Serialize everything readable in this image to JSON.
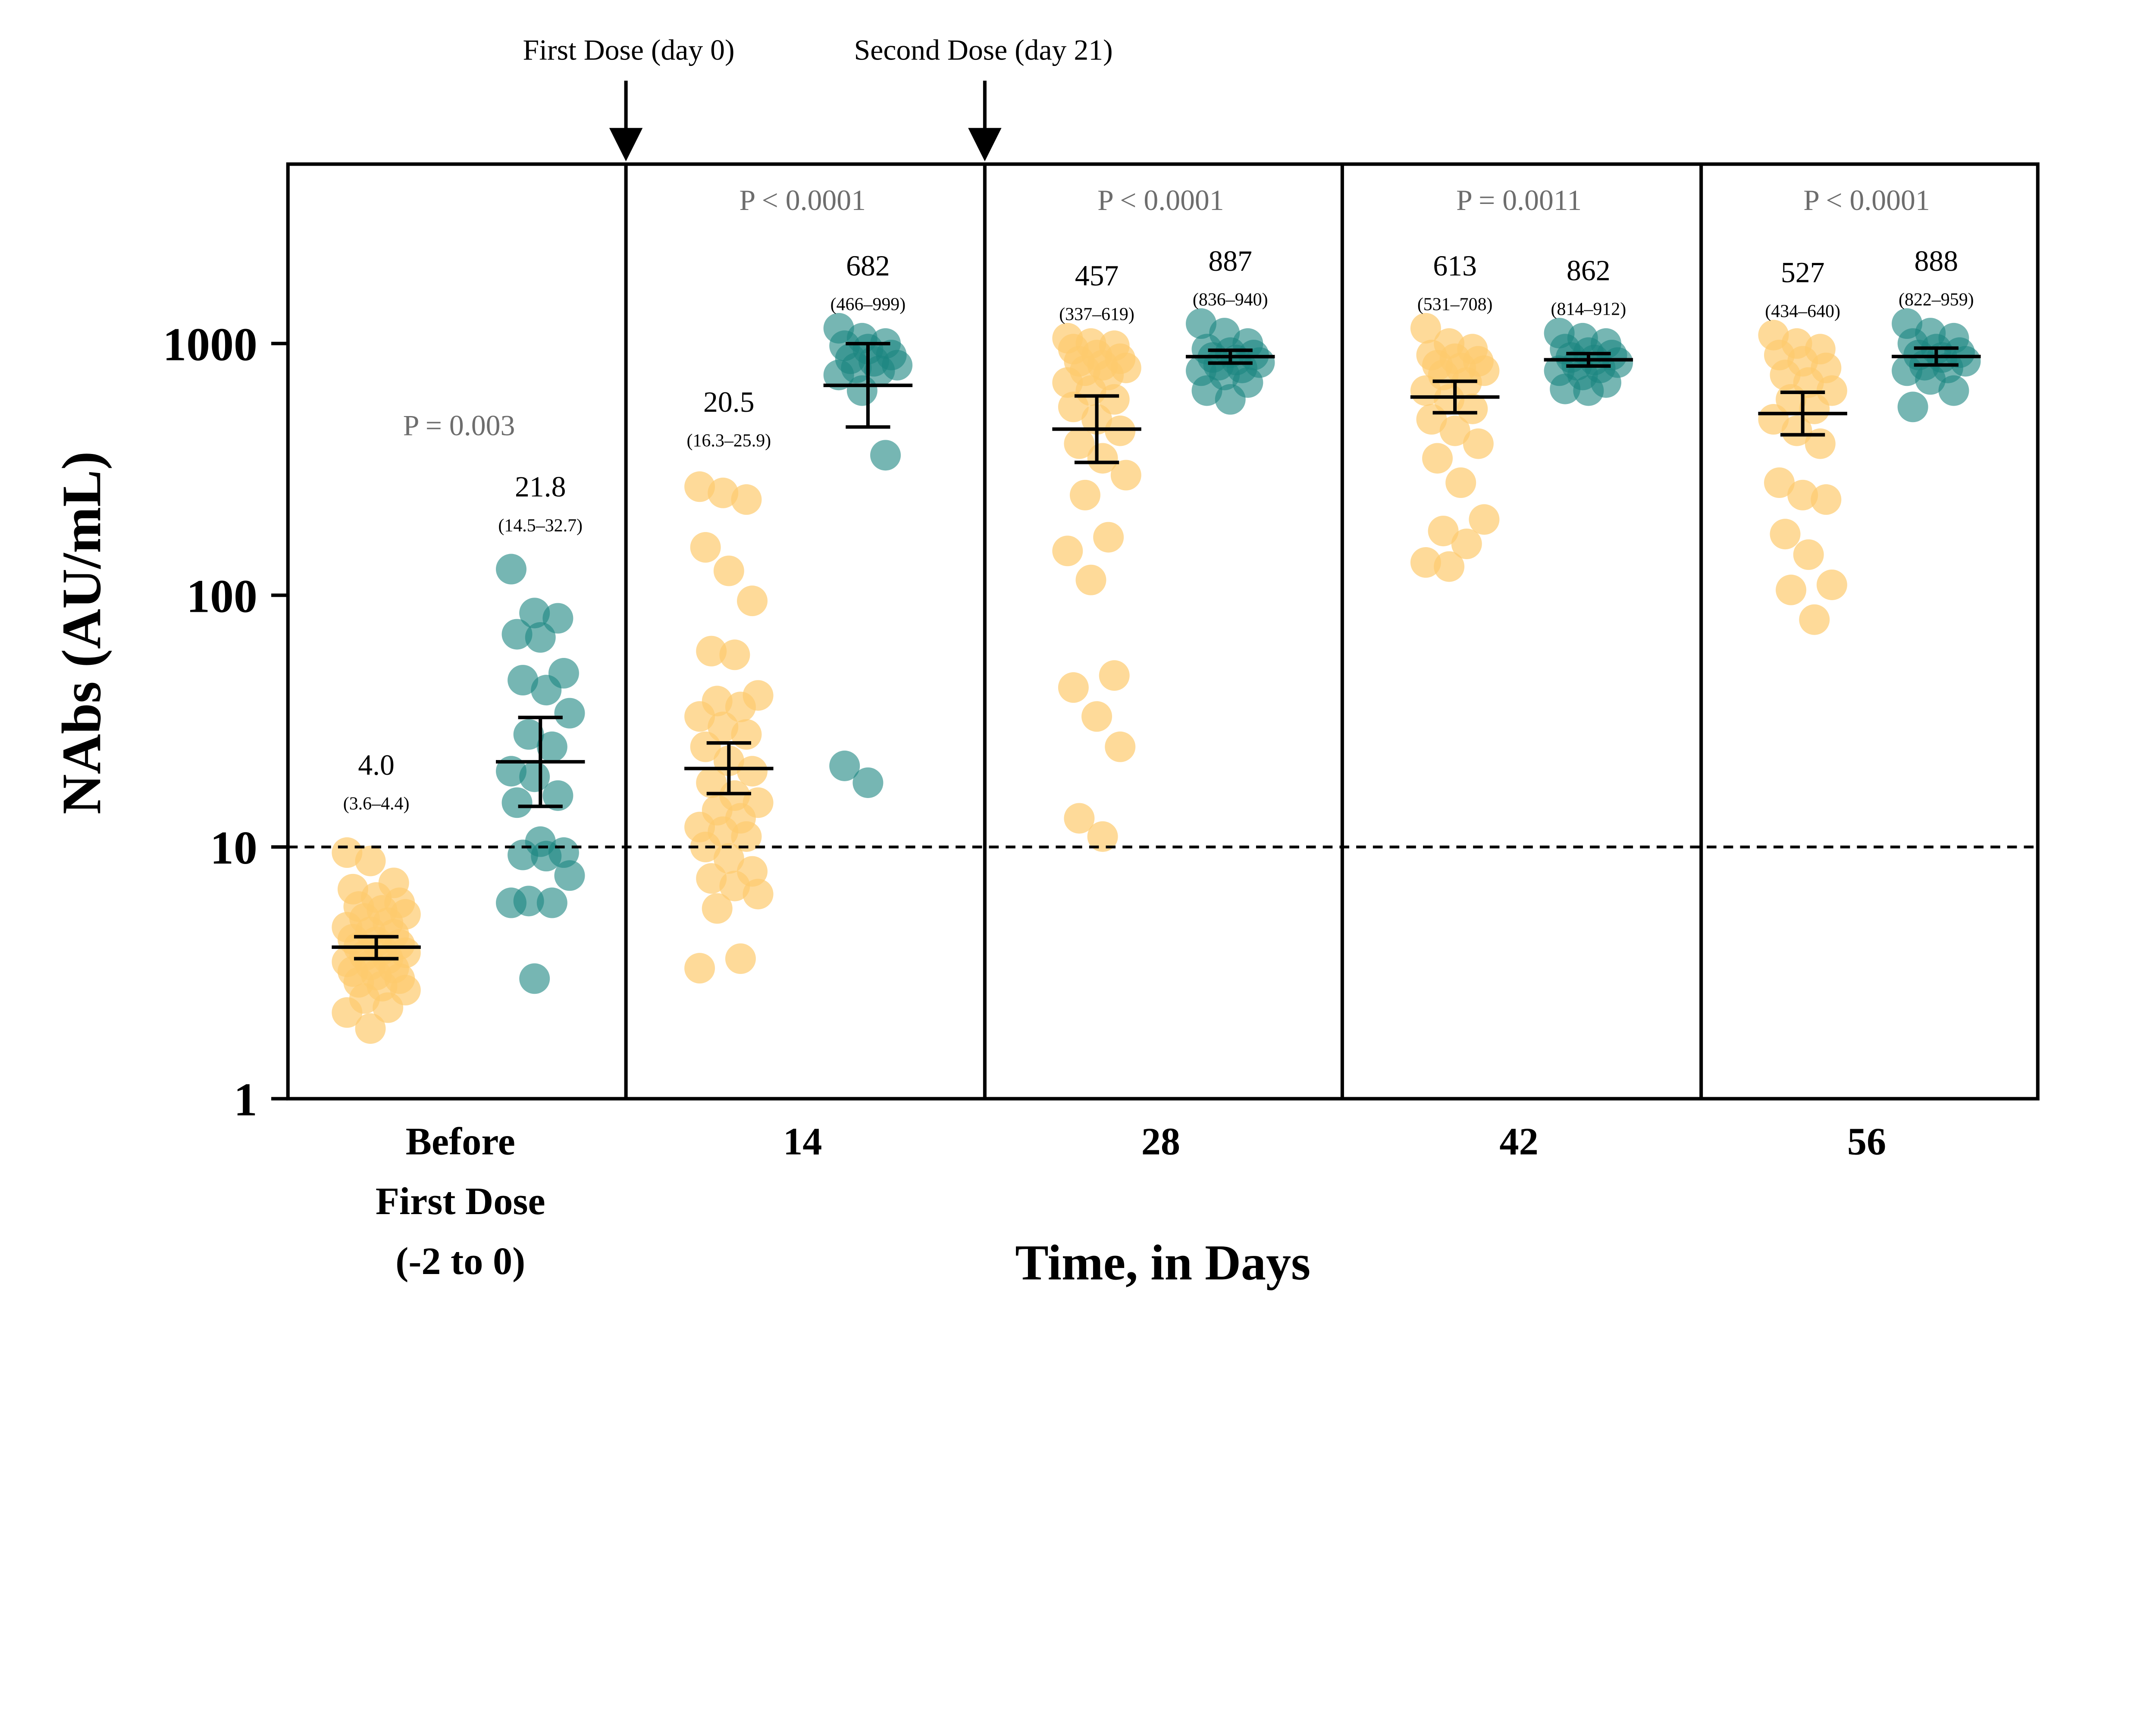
{
  "chart_data": {
    "type": "scatter",
    "ylabel": "NAbs (AU/mL)",
    "xlabel": "Time, in Days",
    "yscale": "log",
    "ylim": [
      1,
      5000
    ],
    "yticks": [
      "1",
      "10",
      "100",
      "1000"
    ],
    "threshold": 10,
    "grid": false,
    "colors": {
      "group_a": "#FDCB6E",
      "group_b": "#1A8580"
    },
    "annotations": {
      "first_dose": "First Dose (day 0)",
      "second_dose": "Second Dose (day 21)"
    },
    "panels": [
      {
        "label_lines": [
          "Before",
          "First Dose",
          "(-2 to 0)"
        ],
        "p_value": "P = 0.003",
        "groups": [
          {
            "color": "group_a",
            "center": 4.0,
            "ci": [
              3.6,
              4.4
            ],
            "center_label": "4.0",
            "ci_label": "(3.6–4.4)",
            "values": [
              9.5,
              8.8,
              7.2,
              6.8,
              6.3,
              6.0,
              5.8,
              5.6,
              5.4,
              5.2,
              5.0,
              4.8,
              4.6,
              4.5,
              4.3,
              4.2,
              4.1,
              4.0,
              3.9,
              3.8,
              3.7,
              3.6,
              3.5,
              3.4,
              3.3,
              3.2,
              3.1,
              3.0,
              2.9,
              2.8,
              2.7,
              2.5,
              2.3,
              2.2,
              1.9
            ]
          },
          {
            "color": "group_b",
            "center": 21.8,
            "ci": [
              14.5,
              32.7
            ],
            "center_label": "21.8",
            "ci_label": "(14.5–32.7)",
            "values": [
              127,
              85,
              81,
              70,
              68,
              49,
              46,
              42,
              34,
              28,
              25,
              20,
              19,
              16,
              15,
              10.5,
              9.5,
              9.3,
              9.2,
              7.7,
              6.1,
              6.0,
              6.0,
              3.0
            ]
          }
        ]
      },
      {
        "label_lines": [
          "14"
        ],
        "p_value": "P < 0.0001",
        "groups": [
          {
            "color": "group_a",
            "center": 20.5,
            "ci": [
              16.3,
              25.9
            ],
            "center_label": "20.5",
            "ci_label": "(16.3–25.9)",
            "values": [
              270,
              255,
              240,
              155,
              125,
              95,
              60,
              58,
              40,
              38,
              36,
              33,
              30,
              28,
              25,
              22,
              20,
              18,
              16,
              15,
              14,
              13,
              12,
              11.5,
              11,
              10,
              9,
              8,
              7.5,
              7,
              6.5,
              5.7,
              3.6,
              3.3
            ]
          },
          {
            "color": "group_b",
            "center": 682,
            "ci": [
              466,
              999
            ],
            "center_label": "682",
            "ci_label": "(466–999)",
            "values": [
              1150,
              1050,
              1000,
              980,
              950,
              900,
              870,
              850,
              820,
              800,
              780,
              750,
              650,
              360,
              21,
              18
            ]
          }
        ]
      },
      {
        "label_lines": [
          "28"
        ],
        "p_value": "P < 0.0001",
        "groups": [
          {
            "color": "group_a",
            "center": 457,
            "ci": [
              337,
              619
            ],
            "center_label": "457",
            "ci_label": "(337–619)",
            "values": [
              1050,
              1000,
              980,
              950,
              900,
              870,
              850,
              820,
              800,
              780,
              750,
              700,
              650,
              600,
              560,
              500,
              450,
              400,
              350,
              300,
              250,
              170,
              150,
              115,
              48,
              43,
              33,
              25,
              13,
              11
            ]
          },
          {
            "color": "group_b",
            "center": 887,
            "ci": [
              836,
              940
            ],
            "center_label": "887",
            "ci_label": "(836–940)",
            "values": [
              1200,
              1100,
              1000,
              950,
              920,
              900,
              880,
              860,
              840,
              820,
              800,
              780,
              750,
              700,
              650,
              600
            ]
          }
        ]
      },
      {
        "label_lines": [
          "42"
        ],
        "p_value": "P = 0.0011",
        "groups": [
          {
            "color": "group_a",
            "center": 613,
            "ci": [
              531,
              708
            ],
            "center_label": "613",
            "ci_label": "(531–708)",
            "values": [
              1150,
              1000,
              950,
              900,
              870,
              850,
              820,
              800,
              780,
              750,
              700,
              650,
              600,
              550,
              500,
              450,
              400,
              350,
              280,
              200,
              180,
              160,
              135,
              130
            ]
          },
          {
            "color": "group_b",
            "center": 862,
            "ci": [
              814,
              912
            ],
            "center_label": "862",
            "ci_label": "(814–912)",
            "values": [
              1100,
              1050,
              1000,
              950,
              920,
              900,
              880,
              860,
              840,
              820,
              800,
              780,
              750,
              700,
              660,
              650
            ]
          }
        ]
      },
      {
        "label_lines": [
          "56"
        ],
        "p_value": "P < 0.0001",
        "groups": [
          {
            "color": "group_a",
            "center": 527,
            "ci": [
              434,
              640
            ],
            "center_label": "527",
            "ci_label": "(434–640)",
            "values": [
              1080,
              1000,
              950,
              900,
              850,
              800,
              750,
              700,
              650,
              600,
              550,
              500,
              450,
              400,
              280,
              250,
              240,
              175,
              145,
              110,
              105,
              80
            ]
          },
          {
            "color": "group_b",
            "center": 888,
            "ci": [
              822,
              959
            ],
            "center_label": "888",
            "ci_label": "(822–959)",
            "values": [
              1200,
              1100,
              1050,
              1000,
              950,
              920,
              900,
              880,
              850,
              820,
              800,
              780,
              720,
              650,
              560
            ]
          }
        ]
      }
    ]
  }
}
